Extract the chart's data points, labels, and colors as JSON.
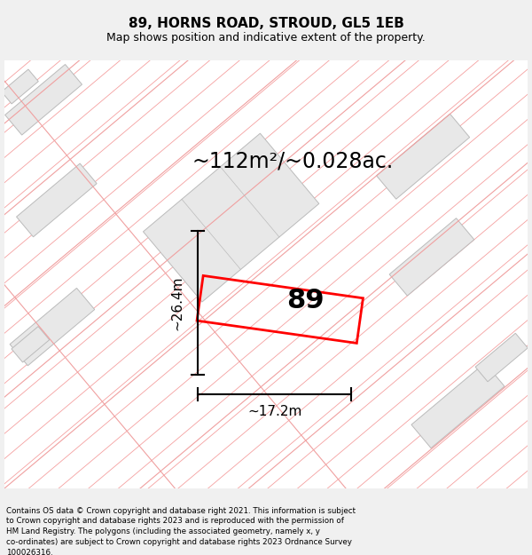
{
  "title": "89, HORNS ROAD, STROUD, GL5 1EB",
  "subtitle": "Map shows position and indicative extent of the property.",
  "area_label": "~112m²/~0.028ac.",
  "dim_height": "~26.4m",
  "dim_width": "~17.2m",
  "property_number": "89",
  "footer": "Contains OS data © Crown copyright and database right 2021. This information is subject to Crown copyright and database rights 2023 and is reproduced with the permission of HM Land Registry. The polygons (including the associated geometry, namely x, y co-ordinates) are subject to Crown copyright and database rights 2023 Ordnance Survey 100026316.",
  "bg_color": "#f0f0f0",
  "map_bg": "#ffffff",
  "property_color": "#ff0000",
  "building_fill": "#e8e8e8",
  "building_edge": "#bbbbbb",
  "hatch_color": "#f5a0a0",
  "title_fontsize": 11,
  "subtitle_fontsize": 9,
  "area_fontsize": 17,
  "dim_fontsize": 11,
  "number_fontsize": 22
}
